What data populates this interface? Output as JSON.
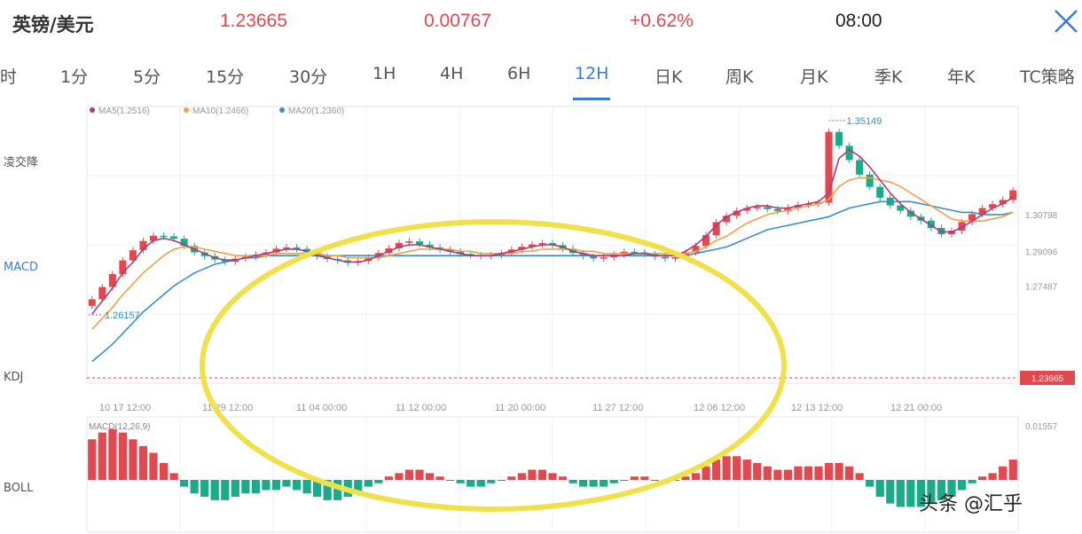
{
  "header": {
    "pair": "英镑/美元",
    "price": "1.23665",
    "change": "0.00767",
    "change_pct": "+0.62%",
    "time": "08:00",
    "close_icon": "close-icon"
  },
  "tabs": [
    {
      "label": "时"
    },
    {
      "label": "1分"
    },
    {
      "label": "5分"
    },
    {
      "label": "15分"
    },
    {
      "label": "30分"
    },
    {
      "label": "1H"
    },
    {
      "label": "4H"
    },
    {
      "label": "6H"
    },
    {
      "label": "12H",
      "active": true
    },
    {
      "label": "日K"
    },
    {
      "label": "周K"
    },
    {
      "label": "月K"
    },
    {
      "label": "季K"
    },
    {
      "label": "年K"
    },
    {
      "label": "TC策略"
    }
  ],
  "side_labels": [
    "凌交降",
    "MACD",
    "KDJ",
    "BOLL"
  ],
  "legend": [
    "MA5(1.2516)",
    "MA10(1.2466)",
    "MA20(1.2360)"
  ],
  "watermark": "头条 @汇乎",
  "colors": {
    "up": "#e0494f",
    "down": "#1aab8a",
    "ma5": "#b03a7a",
    "ma10": "#f0a04a",
    "ma20": "#3a8ec8",
    "ellipse": "#f0e04a",
    "accent": "#3a7bd5"
  },
  "chart_data": {
    "type": "candlestick",
    "title": "英镑/美元 12H",
    "x_tick_labels": [
      "10 17 12:00",
      "11 29 12:00",
      "11 04 00:00",
      "11 12 00:00",
      "11 20 00:00",
      "11 27 12:00",
      "12 06 12:00",
      "12 13 12:00",
      "12 21 00:00"
    ],
    "y_tick_labels": [
      "1.30798",
      "1.29096",
      "1.27487"
    ],
    "ylim": [
      1.23,
      1.358
    ],
    "current_price_label": "1.23665",
    "high_annotation": {
      "label": "1.35149",
      "value": 1.35149
    },
    "low_annotation": {
      "label": "1.26157",
      "value": 1.26157
    },
    "closes": [
      1.2688,
      1.2745,
      1.2805,
      1.2868,
      1.2915,
      1.2958,
      1.2982,
      1.2979,
      1.2968,
      1.2935,
      1.2905,
      1.2888,
      1.2872,
      1.2862,
      1.2876,
      1.2885,
      1.2895,
      1.2905,
      1.2922,
      1.2928,
      1.2921,
      1.2905,
      1.2886,
      1.2874,
      1.2868,
      1.2857,
      1.2865,
      1.2882,
      1.2902,
      1.2924,
      1.2949,
      1.2956,
      1.2941,
      1.2928,
      1.2918,
      1.2908,
      1.2898,
      1.2892,
      1.2887,
      1.2892,
      1.2902,
      1.2918,
      1.2931,
      1.2942,
      1.2948,
      1.2938,
      1.2922,
      1.2902,
      1.2887,
      1.2877,
      1.2882,
      1.2895,
      1.2908,
      1.2905,
      1.2897,
      1.2885,
      1.2877,
      1.2882,
      1.2905,
      1.2935,
      1.2985,
      1.3045,
      1.3075,
      1.3098,
      1.311,
      1.3115,
      1.3105,
      1.3095,
      1.3112,
      1.3125,
      1.313,
      1.3135,
      1.3462,
      1.3398,
      1.3332,
      1.3265,
      1.3208,
      1.3158,
      1.3122,
      1.3098,
      1.307,
      1.3052,
      1.3018,
      1.2989,
      1.3005,
      1.3045,
      1.3082,
      1.311,
      1.3128,
      1.3148,
      1.3192
    ],
    "ma5": [
      1.262,
      1.268,
      1.274,
      1.281,
      1.286,
      1.292,
      1.296,
      1.297,
      1.296,
      1.294,
      1.292,
      1.29,
      1.288,
      1.287,
      1.287,
      1.288,
      1.289,
      1.29,
      1.291,
      1.292,
      1.292,
      1.291,
      1.289,
      1.288,
      1.287,
      1.286,
      1.286,
      1.287,
      1.289,
      1.291,
      1.293,
      1.294,
      1.294,
      1.293,
      1.292,
      1.291,
      1.29,
      1.289,
      1.289,
      1.289,
      1.29,
      1.291,
      1.292,
      1.293,
      1.294,
      1.294,
      1.293,
      1.291,
      1.29,
      1.289,
      1.289,
      1.289,
      1.289,
      1.29,
      1.29,
      1.289,
      1.289,
      1.289,
      1.291,
      1.294,
      1.298,
      1.303,
      1.307,
      1.309,
      1.311,
      1.312,
      1.312,
      1.311,
      1.311,
      1.312,
      1.313,
      1.314,
      1.318,
      1.334,
      1.338,
      1.335,
      1.33,
      1.324,
      1.318,
      1.313,
      1.309,
      1.306,
      1.303,
      1.3,
      1.3,
      1.302,
      1.305,
      1.308,
      1.311,
      1.313,
      1.316
    ],
    "ma10": [
      1.255,
      1.26,
      1.265,
      1.271,
      1.276,
      1.281,
      1.285,
      1.289,
      1.292,
      1.293,
      1.293,
      1.292,
      1.291,
      1.29,
      1.289,
      1.289,
      1.289,
      1.289,
      1.29,
      1.29,
      1.29,
      1.29,
      1.29,
      1.289,
      1.289,
      1.288,
      1.288,
      1.288,
      1.288,
      1.289,
      1.29,
      1.291,
      1.292,
      1.292,
      1.292,
      1.292,
      1.291,
      1.291,
      1.29,
      1.29,
      1.29,
      1.29,
      1.291,
      1.291,
      1.292,
      1.292,
      1.292,
      1.292,
      1.291,
      1.291,
      1.29,
      1.29,
      1.29,
      1.29,
      1.29,
      1.29,
      1.29,
      1.29,
      1.29,
      1.291,
      1.293,
      1.296,
      1.298,
      1.301,
      1.304,
      1.306,
      1.308,
      1.309,
      1.31,
      1.311,
      1.312,
      1.313,
      1.315,
      1.321,
      1.324,
      1.325,
      1.325,
      1.324,
      1.323,
      1.321,
      1.318,
      1.315,
      1.312,
      1.309,
      1.306,
      1.305,
      1.305,
      1.305,
      1.306,
      1.307,
      1.309
    ],
    "ma20": [
      1.24,
      1.244,
      1.248,
      1.253,
      1.258,
      1.263,
      1.267,
      1.271,
      1.275,
      1.278,
      1.281,
      1.283,
      1.285,
      1.286,
      1.287,
      1.288,
      1.288,
      1.289,
      1.289,
      1.289,
      1.289,
      1.289,
      1.289,
      1.289,
      1.289,
      1.289,
      1.289,
      1.289,
      1.289,
      1.289,
      1.289,
      1.289,
      1.289,
      1.289,
      1.289,
      1.289,
      1.289,
      1.289,
      1.289,
      1.289,
      1.289,
      1.289,
      1.289,
      1.289,
      1.289,
      1.289,
      1.289,
      1.289,
      1.289,
      1.289,
      1.289,
      1.289,
      1.289,
      1.289,
      1.289,
      1.289,
      1.289,
      1.289,
      1.289,
      1.29,
      1.291,
      1.292,
      1.293,
      1.295,
      1.297,
      1.299,
      1.301,
      1.302,
      1.303,
      1.304,
      1.305,
      1.306,
      1.307,
      1.309,
      1.311,
      1.312,
      1.313,
      1.314,
      1.314,
      1.314,
      1.314,
      1.313,
      1.312,
      1.311,
      1.31,
      1.309,
      1.309,
      1.308,
      1.308,
      1.308,
      1.309
    ],
    "macd_label": "MACD(12,26,9)",
    "macd_right_label": "0.01557",
    "macd_hist": [
      0.012,
      0.014,
      0.015,
      0.014,
      0.012,
      0.01,
      0.008,
      0.005,
      0.002,
      -0.002,
      -0.004,
      -0.005,
      -0.006,
      -0.006,
      -0.005,
      -0.004,
      -0.004,
      -0.003,
      -0.003,
      -0.002,
      -0.003,
      -0.004,
      -0.005,
      -0.006,
      -0.006,
      -0.005,
      -0.004,
      -0.002,
      -0.001,
      0.001,
      0.002,
      0.003,
      0.003,
      0.002,
      0.001,
      0.0,
      -0.001,
      -0.002,
      -0.002,
      -0.001,
      0.0,
      0.001,
      0.002,
      0.003,
      0.003,
      0.002,
      0.001,
      -0.001,
      -0.002,
      -0.002,
      -0.002,
      -0.001,
      0.0,
      0.001,
      0.001,
      0.0,
      -0.001,
      0.0,
      0.001,
      0.002,
      0.004,
      0.006,
      0.007,
      0.007,
      0.006,
      0.005,
      0.004,
      0.003,
      0.003,
      0.004,
      0.004,
      0.004,
      0.005,
      0.005,
      0.004,
      0.002,
      -0.002,
      -0.005,
      -0.007,
      -0.008,
      -0.008,
      -0.008,
      -0.007,
      -0.006,
      -0.005,
      -0.003,
      -0.001,
      0.001,
      0.002,
      0.004,
      0.006
    ]
  }
}
